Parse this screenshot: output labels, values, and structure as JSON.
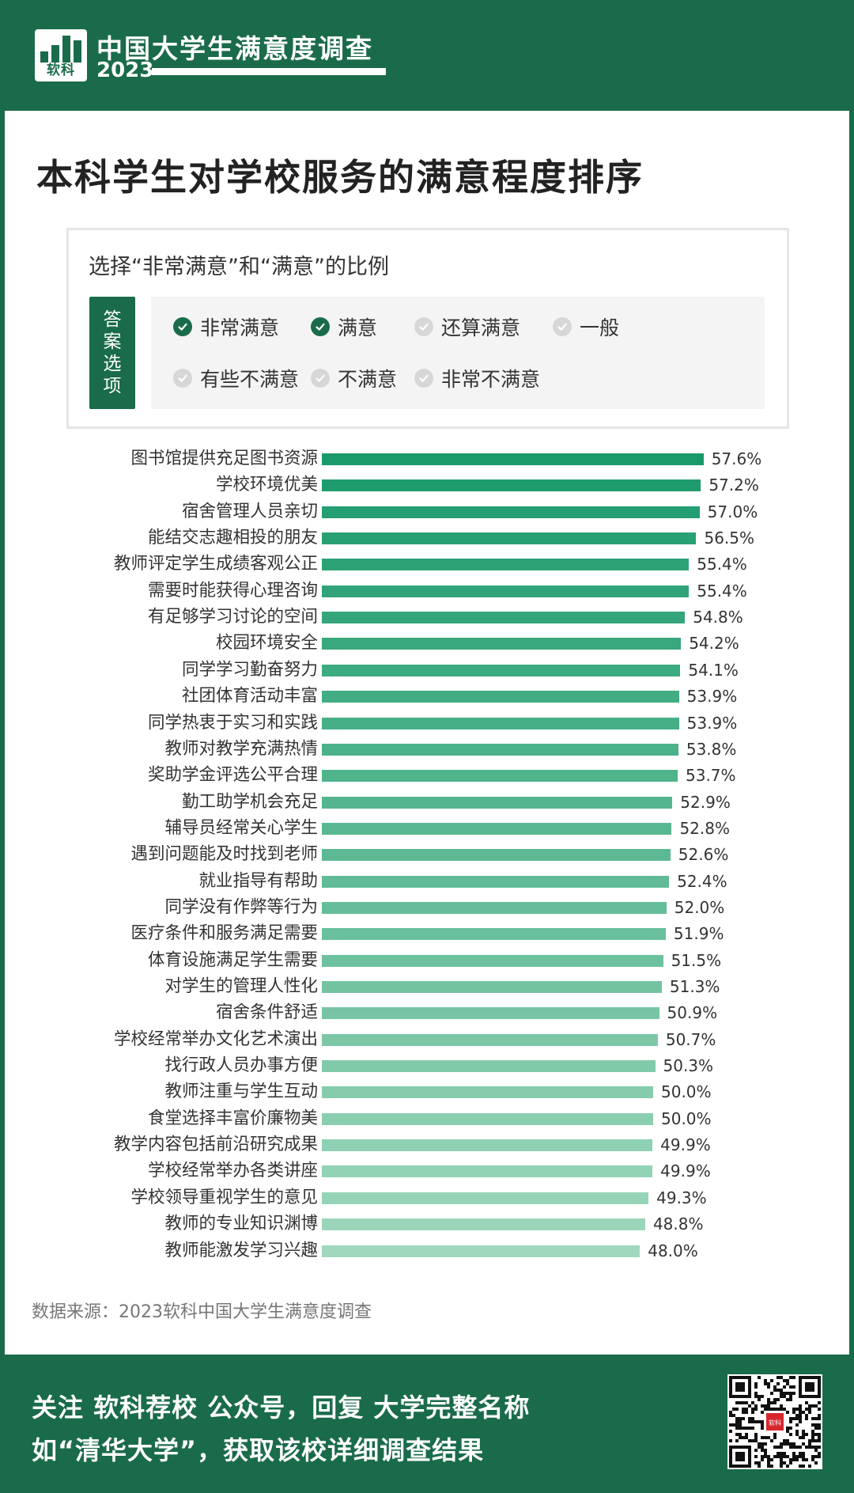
{
  "header": {
    "logo_text": "软科",
    "title": "中国大学生满意度调查",
    "year": "2023"
  },
  "main_title": "本科学生对学校服务的满意程度排序",
  "legend": {
    "title": "选择“非常满意”和“满意”的比例",
    "answer_label": "答案选项",
    "options": [
      {
        "label": "非常满意",
        "checked": true
      },
      {
        "label": "满意",
        "checked": true
      },
      {
        "label": "还算满意",
        "checked": false
      },
      {
        "label": "一般",
        "checked": false
      },
      {
        "label": "有些不满意",
        "checked": false
      },
      {
        "label": "不满意",
        "checked": false
      },
      {
        "label": "非常不满意",
        "checked": false
      }
    ]
  },
  "chart_data": {
    "type": "bar",
    "orientation": "horizontal",
    "categories": [
      "图书馆提供充足图书资源",
      "学校环境优美",
      "宿舍管理人员亲切",
      "能结交志趣相投的朋友",
      "教师评定学生成绩客观公正",
      "需要时能获得心理咨询",
      "有足够学习讨论的空间",
      "校园环境安全",
      "同学学习勤奋努力",
      "社团体育活动丰富",
      "同学热衷于实习和实践",
      "教师对教学充满热情",
      "奖助学金评选公平合理",
      "勤工助学机会充足",
      "辅导员经常关心学生",
      "遇到问题能及时找到老师",
      "就业指导有帮助",
      "同学没有作弊等行为",
      "医疗条件和服务满足需要",
      "体育设施满足学生需要",
      "对学生的管理人性化",
      "宿舍条件舒适",
      "学校经常举办文化艺术演出",
      "找行政人员办事方便",
      "教师注重与学生互动",
      "食堂选择丰富价廉物美",
      "教学内容包括前沿研究成果",
      "学校经常举办各类讲座",
      "学校领导重视学生的意见",
      "教师的专业知识渊博",
      "教师能激发学习兴趣"
    ],
    "values": [
      57.6,
      57.2,
      57.0,
      56.5,
      55.4,
      55.4,
      54.8,
      54.2,
      54.1,
      53.9,
      53.9,
      53.8,
      53.7,
      52.9,
      52.8,
      52.6,
      52.4,
      52.0,
      51.9,
      51.5,
      51.3,
      50.9,
      50.7,
      50.3,
      50.0,
      50.0,
      49.9,
      49.9,
      49.3,
      48.8,
      48.0
    ],
    "value_labels": [
      "57.6%",
      "57.2%",
      "57.0%",
      "56.5%",
      "55.4%",
      "55.4%",
      "54.8%",
      "54.2%",
      "54.1%",
      "53.9%",
      "53.9%",
      "53.8%",
      "53.7%",
      "52.9%",
      "52.8%",
      "52.6%",
      "52.4%",
      "52.0%",
      "51.9%",
      "51.5%",
      "51.3%",
      "50.9%",
      "50.7%",
      "50.3%",
      "50.0%",
      "50.0%",
      "49.9%",
      "49.9%",
      "49.3%",
      "48.8%",
      "48.0%"
    ],
    "unit": "%",
    "colors": {
      "start": "#1a9a6a",
      "end": "#9fd8bd"
    }
  },
  "source": "数据来源：2023软科中国大学生满意度调查",
  "footer": {
    "line1": "关注 软科荐校 公众号，回复 大学完整名称",
    "line2": "如“清华大学”，获取该校详细调查结果",
    "qr_center_text": "软科"
  },
  "colors": {
    "brand": "#1a6b4a",
    "background": "#ffffff"
  }
}
